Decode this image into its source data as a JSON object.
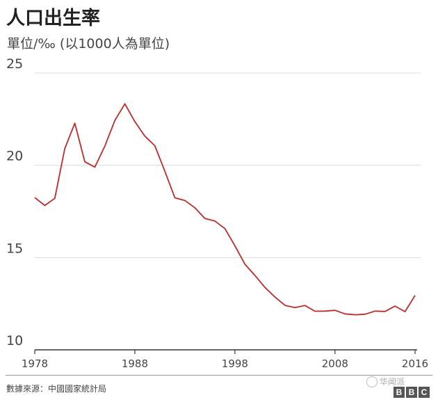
{
  "header": {
    "title": "人口出生率",
    "subtitle": "單位/‰ (以1000人為單位)"
  },
  "footer": {
    "source": "數據來源：中國國家統計局",
    "watermark": "华闻派",
    "logo_letters": [
      "B",
      "B",
      "C"
    ]
  },
  "colors": {
    "line": "#c0282a",
    "grid": "#dddddd",
    "axis": "#333333"
  },
  "chart_data": {
    "type": "line",
    "title": "人口出生率",
    "subtitle": "單位/‰ (以1000人為單位)",
    "xlabel": "",
    "ylabel": "",
    "x_ticks": [
      1978,
      1988,
      1998,
      2008,
      2016
    ],
    "y_ticks": [
      10,
      15,
      20,
      25
    ],
    "xlim": [
      1978,
      2016
    ],
    "ylim": [
      10,
      25
    ],
    "grid": "horizontal",
    "legend": "none",
    "series": [
      {
        "x": [
          1978,
          1979,
          1980,
          1981,
          1982,
          1983,
          1984,
          1985,
          1986,
          1987,
          1988,
          1989,
          1990,
          1991,
          1992,
          1993,
          1994,
          1995,
          1996,
          1997,
          1998,
          1999,
          2000,
          2001,
          2002,
          2003,
          2004,
          2005,
          2006,
          2007,
          2008,
          2009,
          2010,
          2011,
          2012,
          2013,
          2014,
          2015,
          2016
        ],
        "values": [
          18.25,
          17.82,
          18.21,
          20.91,
          22.28,
          20.19,
          19.9,
          21.04,
          22.43,
          23.33,
          22.37,
          21.58,
          21.06,
          19.68,
          18.24,
          18.09,
          17.7,
          17.12,
          16.98,
          16.57,
          15.64,
          14.64,
          14.03,
          13.38,
          12.86,
          12.41,
          12.29,
          12.4,
          12.09,
          12.1,
          12.14,
          11.95,
          11.9,
          11.93,
          12.1,
          12.08,
          12.37,
          12.07,
          12.95
        ]
      }
    ]
  }
}
